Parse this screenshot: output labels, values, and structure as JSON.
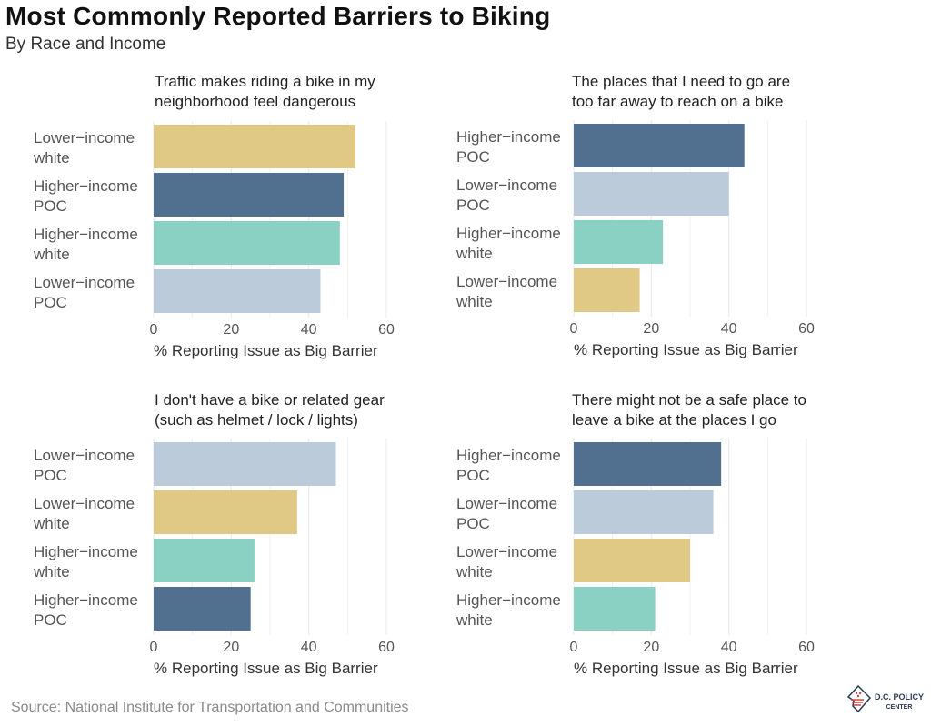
{
  "header": {
    "title": "Most Commonly Reported Barriers to Biking",
    "subtitle": "By Race and Income"
  },
  "source": "Source:  National Institute for Transportation and Communities",
  "logo": {
    "line1": "D.C. POLICY",
    "line2": "CENTER"
  },
  "colors": {
    "Lower−income white": "#e0c885",
    "Higher−income POC": "#51708f",
    "Higher−income white": "#8ad1c4",
    "Lower−income POC": "#bccbda",
    "grid": "#ececec",
    "text": "#555555"
  },
  "chart_data": [
    {
      "type": "bar",
      "orientation": "horizontal",
      "title": "Traffic makes riding a bike in my neighborhood feel dangerous",
      "title_lines": [
        "Traffic makes riding a bike in my",
        "neighborhood feel dangerous"
      ],
      "categories": [
        "Lower−income white",
        "Higher−income POC",
        "Higher−income white",
        "Lower−income POC"
      ],
      "values": [
        52,
        49,
        48,
        43
      ],
      "xlabel": "% Reporting Issue as Big Barrier",
      "xlim": [
        0,
        60
      ],
      "xticks": [
        0,
        20,
        40,
        60
      ]
    },
    {
      "type": "bar",
      "orientation": "horizontal",
      "title": "The places that I need to go are too far away to reach on a bike",
      "title_lines": [
        "The places that I need to go are",
        "too far away to reach on a bike"
      ],
      "categories": [
        "Higher−income POC",
        "Lower−income POC",
        "Higher−income white",
        "Lower−income white"
      ],
      "values": [
        44,
        40,
        23,
        17
      ],
      "xlabel": "% Reporting Issue as Big Barrier",
      "xlim": [
        0,
        60
      ],
      "xticks": [
        0,
        20,
        40,
        60
      ]
    },
    {
      "type": "bar",
      "orientation": "horizontal",
      "title": "I don't have a bike or related gear (such as helmet / lock / lights)",
      "title_lines": [
        "I don't have a bike or related gear",
        "(such as helmet / lock / lights)"
      ],
      "categories": [
        "Lower−income POC",
        "Lower−income white",
        "Higher−income white",
        "Higher−income POC"
      ],
      "values": [
        47,
        37,
        26,
        25
      ],
      "xlabel": "% Reporting Issue as Big Barrier",
      "xlim": [
        0,
        60
      ],
      "xticks": [
        0,
        20,
        40,
        60
      ]
    },
    {
      "type": "bar",
      "orientation": "horizontal",
      "title": "There might not be a safe place to leave a bike at the places I go",
      "title_lines": [
        "There might not be a safe place to",
        "leave a bike at the places I go"
      ],
      "categories": [
        "Higher−income POC",
        "Lower−income POC",
        "Lower−income white",
        "Higher−income white"
      ],
      "values": [
        38,
        36,
        30,
        21
      ],
      "xlabel": "% Reporting Issue as Big Barrier",
      "xlim": [
        0,
        60
      ],
      "xticks": [
        0,
        20,
        40,
        60
      ]
    }
  ]
}
